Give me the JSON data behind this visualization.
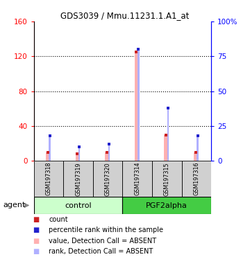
{
  "title": "GDS3039 / Mmu.11231.1.A1_at",
  "samples": [
    "GSM197318",
    "GSM197319",
    "GSM197320",
    "GSM197314",
    "GSM197315",
    "GSM197316"
  ],
  "groups": [
    "control",
    "control",
    "control",
    "PGF2alpha",
    "PGF2alpha",
    "PGF2alpha"
  ],
  "group_labels": [
    "control",
    "PGF2alpha"
  ],
  "ylim_left": [
    0,
    160
  ],
  "ylim_right": [
    0,
    100
  ],
  "yticks_left": [
    0,
    40,
    80,
    120,
    160
  ],
  "ytick_labels_left": [
    "0",
    "40",
    "80",
    "120",
    "160"
  ],
  "yticks_right": [
    0,
    25,
    50,
    75,
    100
  ],
  "ytick_labels_right": [
    "0",
    "25",
    "50",
    "75",
    "100%"
  ],
  "count_values": [
    10,
    8,
    10,
    125,
    30,
    10
  ],
  "rank_values": [
    18,
    10,
    12,
    80,
    38,
    18
  ],
  "count_color": "#cc2222",
  "rank_color": "#2222cc",
  "absent_value_color": "#ffb0b0",
  "absent_rank_color": "#b0b0ff",
  "detection_calls": [
    "ABSENT",
    "ABSENT",
    "ABSENT",
    "ABSENT",
    "ABSENT",
    "ABSENT"
  ],
  "legend_items": [
    {
      "label": "count",
      "color": "#cc2222",
      "marker": "s"
    },
    {
      "label": "percentile rank within the sample",
      "color": "#2222cc",
      "marker": "s"
    },
    {
      "label": "value, Detection Call = ABSENT",
      "color": "#ffb0b0",
      "marker": "s"
    },
    {
      "label": "rank, Detection Call = ABSENT",
      "color": "#b0b0ff",
      "marker": "s"
    }
  ],
  "grid_lines": [
    40,
    80,
    120
  ],
  "absent_bar_width": 0.12,
  "rank_bar_width": 0.06,
  "marker_size": 3.5
}
